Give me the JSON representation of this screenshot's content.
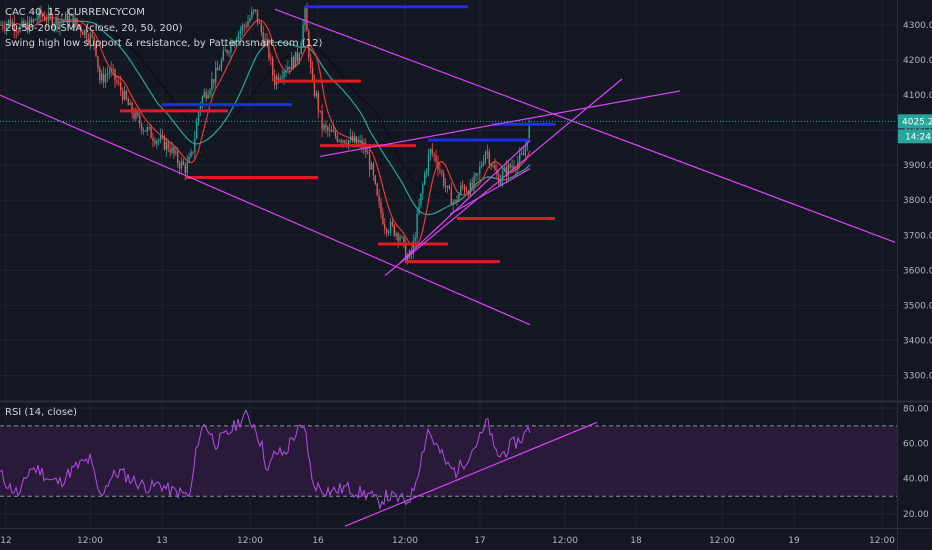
{
  "legend": {
    "symbol": "CAC 40, 15, CURRENCYCOM",
    "sma": "20-50-200-SMA (close, 20, 50, 200)",
    "swing": "Swing high low support & resistance, by Patternsmart.com (12)",
    "rsi": "RSI (14, close)"
  },
  "price_badge": {
    "price": "4025.2",
    "timer": "14:24"
  },
  "colors": {
    "background": "#131722",
    "up": "#26a69a",
    "down": "#ef5350",
    "trendline": "#e040fb",
    "support": "#e01b24",
    "resistance": "#1e2ee8",
    "sma20": "#e53935",
    "sma50": "#26a69a",
    "sma200": "#2a2e39",
    "rsi": "#b34ee6"
  },
  "chart_data": [
    {
      "type": "candlestick",
      "name": "price",
      "x_ticks": [
        "12",
        "12:00",
        "13",
        "12:00",
        "16",
        "12:00",
        "17",
        "12:00",
        "18",
        "12:00",
        "19",
        "12:00"
      ],
      "y_ticks": [
        "3300.0",
        "3400.0",
        "3500.0",
        "3600.0",
        "3700.0",
        "3800.0",
        "3900.0",
        "4000.0",
        "4100.0",
        "4200.0",
        "4300.0"
      ],
      "ylim": [
        3230,
        4360
      ],
      "close_path": [
        [
          0,
          4300
        ],
        [
          10,
          4310
        ],
        [
          20,
          4290
        ],
        [
          30,
          4300
        ],
        [
          40,
          4330
        ],
        [
          55,
          4310
        ],
        [
          70,
          4320
        ],
        [
          85,
          4280
        ],
        [
          95,
          4250
        ],
        [
          100,
          4140
        ],
        [
          110,
          4170
        ],
        [
          120,
          4120
        ],
        [
          130,
          4060
        ],
        [
          140,
          4020
        ],
        [
          150,
          3990
        ],
        [
          160,
          3970
        ],
        [
          170,
          3950
        ],
        [
          178,
          3910
        ],
        [
          186,
          3890
        ],
        [
          192,
          3930
        ],
        [
          200,
          4080
        ],
        [
          210,
          4130
        ],
        [
          218,
          4170
        ],
        [
          225,
          4220
        ],
        [
          235,
          4270
        ],
        [
          245,
          4300
        ],
        [
          255,
          4340
        ],
        [
          260,
          4290
        ],
        [
          268,
          4230
        ],
        [
          274,
          4140
        ],
        [
          282,
          4170
        ],
        [
          290,
          4190
        ],
        [
          298,
          4210
        ],
        [
          305,
          4330
        ],
        [
          312,
          4130
        ],
        [
          316,
          4100
        ],
        [
          322,
          4010
        ],
        [
          330,
          3990
        ],
        [
          340,
          3980
        ],
        [
          350,
          3970
        ],
        [
          360,
          3960
        ],
        [
          366,
          3940
        ],
        [
          372,
          3880
        ],
        [
          378,
          3790
        ],
        [
          385,
          3730
        ],
        [
          392,
          3720
        ],
        [
          400,
          3700
        ],
        [
          407,
          3630
        ],
        [
          412,
          3650
        ],
        [
          418,
          3760
        ],
        [
          425,
          3880
        ],
        [
          430,
          3940
        ],
        [
          436,
          3920
        ],
        [
          442,
          3870
        ],
        [
          448,
          3820
        ],
        [
          455,
          3790
        ],
        [
          462,
          3840
        ],
        [
          470,
          3830
        ],
        [
          478,
          3870
        ],
        [
          486,
          3950
        ],
        [
          492,
          3900
        ],
        [
          498,
          3860
        ],
        [
          505,
          3880
        ],
        [
          512,
          3900
        ],
        [
          518,
          3910
        ],
        [
          524,
          3930
        ],
        [
          528,
          4000
        ],
        [
          531,
          4025
        ]
      ],
      "support_lines": [
        {
          "price": 4055,
          "from": 120,
          "to": 228
        },
        {
          "price": 3865,
          "from": 185,
          "to": 318
        },
        {
          "price": 4140,
          "from": 275,
          "to": 361
        },
        {
          "price": 3956,
          "from": 320,
          "to": 416
        },
        {
          "price": 3675,
          "from": 378,
          "to": 448
        },
        {
          "price": 3625,
          "from": 405,
          "to": 500
        },
        {
          "price": 3748,
          "from": 457,
          "to": 555
        }
      ],
      "resistance_lines": [
        {
          "price": 4352,
          "from": 305,
          "to": 468
        },
        {
          "price": 4073,
          "from": 162,
          "to": 292
        },
        {
          "price": 3972,
          "from": 428,
          "to": 530
        },
        {
          "price": 4017,
          "from": 492,
          "to": 556
        }
      ],
      "trendlines": [
        [
          [
            0,
            4100
          ],
          [
            530,
            3445
          ]
        ],
        [
          [
            275,
            4345
          ],
          [
            895,
            3680
          ]
        ],
        [
          [
            320,
            3925
          ],
          [
            680,
            4112
          ]
        ],
        [
          [
            385,
            3585
          ],
          [
            622,
            4146
          ]
        ],
        [
          [
            400,
            3622
          ],
          [
            530,
            3970
          ]
        ],
        [
          [
            450,
            3760
          ],
          [
            530,
            3890
          ]
        ]
      ]
    },
    {
      "type": "line",
      "name": "rsi",
      "y_ticks": [
        "20.00",
        "40.00",
        "60.00",
        "80.00"
      ],
      "ylim": [
        12,
        83
      ],
      "bands": [
        30,
        70
      ],
      "path": [
        [
          0,
          43
        ],
        [
          10,
          35
        ],
        [
          20,
          31
        ],
        [
          30,
          46
        ],
        [
          40,
          45
        ],
        [
          50,
          39
        ],
        [
          60,
          38
        ],
        [
          70,
          44
        ],
        [
          80,
          48
        ],
        [
          90,
          51
        ],
        [
          100,
          30
        ],
        [
          110,
          40
        ],
        [
          120,
          44
        ],
        [
          130,
          40
        ],
        [
          140,
          37
        ],
        [
          150,
          35
        ],
        [
          160,
          37
        ],
        [
          170,
          33
        ],
        [
          180,
          32
        ],
        [
          190,
          30
        ],
        [
          198,
          62
        ],
        [
          205,
          72
        ],
        [
          215,
          60
        ],
        [
          225,
          64
        ],
        [
          235,
          70
        ],
        [
          245,
          76
        ],
        [
          255,
          70
        ],
        [
          262,
          58
        ],
        [
          268,
          44
        ],
        [
          275,
          55
        ],
        [
          285,
          54
        ],
        [
          292,
          63
        ],
        [
          300,
          68
        ],
        [
          306,
          66
        ],
        [
          312,
          38
        ],
        [
          322,
          34
        ],
        [
          334,
          33
        ],
        [
          346,
          35
        ],
        [
          360,
          32
        ],
        [
          370,
          31
        ],
        [
          378,
          26
        ],
        [
          386,
          30
        ],
        [
          396,
          29
        ],
        [
          406,
          27
        ],
        [
          412,
          31
        ],
        [
          420,
          49
        ],
        [
          428,
          68
        ],
        [
          434,
          61
        ],
        [
          440,
          55
        ],
        [
          448,
          47
        ],
        [
          456,
          44
        ],
        [
          466,
          51
        ],
        [
          474,
          58
        ],
        [
          482,
          65
        ],
        [
          488,
          73
        ],
        [
          494,
          56
        ],
        [
          500,
          53
        ],
        [
          506,
          56
        ],
        [
          514,
          60
        ],
        [
          520,
          62
        ],
        [
          526,
          66
        ],
        [
          531,
          69
        ]
      ],
      "trendline": [
        [
          345,
          13
        ],
        [
          597,
          72
        ]
      ]
    }
  ]
}
